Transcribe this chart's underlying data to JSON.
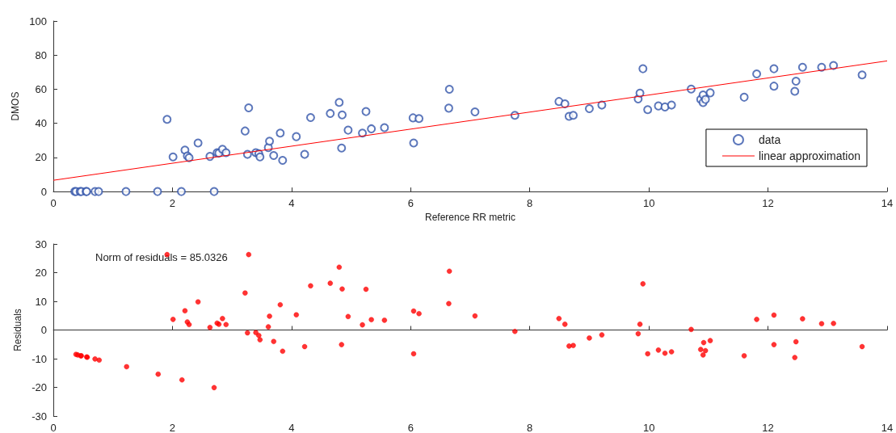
{
  "chart_data": [
    {
      "type": "scatter",
      "xlabel": "Reference RR metric",
      "ylabel": "DMOS",
      "xlim": [
        0,
        14
      ],
      "xticks": [
        0,
        2,
        4,
        6,
        8,
        10,
        12,
        14
      ],
      "ylim": [
        0,
        100
      ],
      "yticks": [
        0,
        20,
        40,
        60,
        80,
        100
      ],
      "legend": "bottom right",
      "marker": "circle",
      "series": [
        {
          "name": "data",
          "color": "#3355aa",
          "x": [
            0.36,
            0.38,
            0.45,
            0.47,
            0.55,
            0.56,
            0.7,
            0.76,
            1.22,
            1.75,
            2.15,
            2.7,
            1.91,
            2.01,
            2.21,
            2.25,
            2.28,
            2.43,
            2.63,
            2.75,
            2.78,
            2.84,
            2.9,
            3.22,
            3.26,
            3.28,
            3.4,
            3.45,
            3.47,
            3.61,
            3.63,
            3.7,
            3.81,
            3.85,
            4.08,
            4.22,
            4.32,
            4.65,
            4.8,
            4.84,
            4.85,
            4.95,
            5.19,
            5.25,
            5.34,
            5.56,
            6.04,
            6.05,
            6.14,
            6.64,
            6.65,
            7.08,
            7.75,
            8.49,
            8.59,
            8.66,
            8.73,
            9.0,
            9.21,
            9.82,
            9.85,
            9.9,
            9.98,
            10.16,
            10.27,
            10.38,
            10.71,
            10.87,
            10.91,
            10.91,
            10.95,
            11.03,
            11.6,
            11.81,
            12.1,
            12.1,
            12.45,
            12.47,
            12.58,
            12.9,
            13.1,
            13.58
          ],
          "values": [
            0,
            0,
            0,
            0,
            0,
            0,
            0,
            0,
            0,
            0,
            0,
            0,
            42.3,
            20.3,
            24.3,
            20.9,
            19.8,
            28.5,
            20.6,
            22.8,
            22.5,
            24.8,
            22.8,
            35.5,
            21.8,
            49.1,
            22.8,
            22.2,
            20.3,
            25.8,
            29.5,
            21.1,
            34.3,
            18.3,
            32.2,
            21.8,
            43.4,
            45.8,
            52.3,
            25.5,
            44.9,
            36.0,
            34.3,
            46.9,
            36.8,
            37.5,
            43.2,
            28.5,
            42.8,
            48.9,
            60.0,
            46.7,
            44.7,
            52.8,
            51.4,
            44.1,
            44.7,
            48.6,
            50.7,
            54.3,
            57.7,
            72.0,
            48.0,
            50.2,
            49.6,
            50.7,
            60.1,
            54.0,
            56.6,
            52.2,
            54.0,
            57.9,
            55.3,
            69.0,
            72.0,
            61.8,
            58.8,
            64.7,
            72.9,
            72.9,
            73.9,
            68.4
          ]
        },
        {
          "name": "linear approximation",
          "type": "line",
          "marker": "none",
          "color": "#ff0000",
          "x": [
            0,
            14
          ],
          "values": [
            6.6,
            76.6
          ]
        }
      ]
    },
    {
      "type": "scatter",
      "ylabel": "Residuals",
      "xlim": [
        0,
        14
      ],
      "xticks": [
        0,
        2,
        4,
        6,
        8,
        10,
        12,
        14
      ],
      "ylim": [
        -30,
        30
      ],
      "yticks": [
        -30,
        -20,
        -10,
        0,
        10,
        20,
        30
      ],
      "marker": "circle",
      "annotations": [
        "Norm of residuals = 85.0326"
      ],
      "series": [
        {
          "color": "#ff0000",
          "x": [
            0.38,
            0.41,
            0.46,
            0.47,
            0.56,
            0.57,
            0.7,
            0.77,
            1.23,
            1.76,
            2.16,
            2.7,
            1.91,
            2.01,
            2.21,
            2.25,
            2.28,
            2.43,
            2.63,
            2.75,
            2.78,
            2.84,
            2.9,
            3.22,
            3.26,
            3.28,
            3.4,
            3.45,
            3.47,
            3.61,
            3.63,
            3.7,
            3.81,
            3.85,
            4.08,
            4.22,
            4.32,
            4.65,
            4.8,
            4.84,
            4.85,
            4.95,
            5.19,
            5.25,
            5.34,
            5.56,
            6.05,
            6.05,
            6.14,
            6.64,
            6.65,
            7.08,
            7.75,
            8.49,
            8.59,
            8.66,
            8.73,
            9.0,
            9.21,
            9.82,
            9.85,
            9.9,
            9.98,
            10.16,
            10.27,
            10.38,
            10.71,
            10.87,
            10.92,
            10.91,
            10.95,
            11.03,
            11.6,
            11.81,
            12.1,
            12.1,
            12.45,
            12.47,
            12.58,
            12.9,
            13.1,
            13.58
          ],
          "values": [
            -8.5,
            -8.7,
            -9.0,
            -9.0,
            -9.4,
            -9.5,
            -10.1,
            -10.5,
            -12.8,
            -15.4,
            -17.4,
            -20.1,
            26.3,
            3.7,
            6.7,
            2.8,
            1.9,
            9.8,
            0.9,
            2.4,
            2.0,
            4.0,
            1.9,
            12.9,
            -1.0,
            26.3,
            -0.9,
            -1.9,
            -3.4,
            1.1,
            4.8,
            -4.0,
            8.8,
            -7.4,
            5.3,
            -5.8,
            15.4,
            16.3,
            21.9,
            -5.1,
            14.3,
            4.7,
            1.8,
            14.2,
            3.6,
            3.4,
            6.6,
            -8.3,
            5.7,
            9.2,
            20.5,
            4.9,
            -0.5,
            4.0,
            2.0,
            -5.6,
            -5.4,
            -2.8,
            -1.7,
            -1.3,
            2.0,
            16.1,
            -8.3,
            -7.0,
            -8.1,
            -7.6,
            0.2,
            -6.8,
            -4.4,
            -8.7,
            -7.2,
            -3.7,
            -9.0,
            3.7,
            5.2,
            -5.1,
            -9.6,
            -4.1,
            3.9,
            2.2,
            2.3,
            -5.8
          ]
        }
      ]
    }
  ]
}
